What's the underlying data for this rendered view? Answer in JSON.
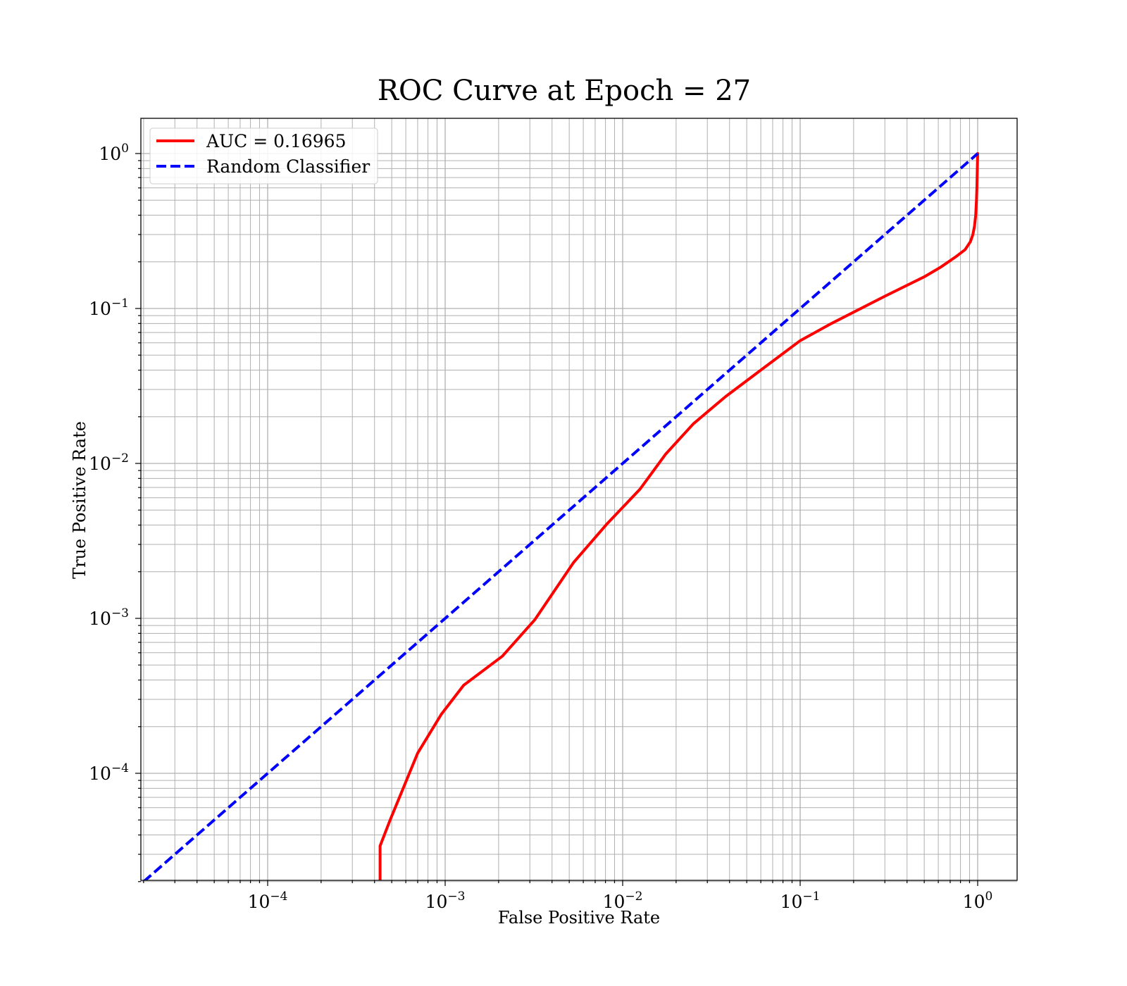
{
  "chart_data": {
    "type": "line",
    "title": "ROC Curve at Epoch = 27",
    "xlabel": "False Positive Rate",
    "ylabel": "True Positive Rate",
    "xscale": "log",
    "yscale": "log",
    "xlim": [
      2e-05,
      1.6
    ],
    "ylim": [
      2e-05,
      1.6
    ],
    "grid": "major and minor",
    "legend_position": "upper-left",
    "xticks": [
      {
        "base": "10",
        "exp": "−4"
      },
      {
        "base": "10",
        "exp": "−3"
      },
      {
        "base": "10",
        "exp": "−2"
      },
      {
        "base": "10",
        "exp": "−1"
      },
      {
        "base": "10",
        "exp": "0"
      }
    ],
    "yticks": [
      {
        "base": "10",
        "exp": "−4"
      },
      {
        "base": "10",
        "exp": "−3"
      },
      {
        "base": "10",
        "exp": "−2"
      },
      {
        "base": "10",
        "exp": "−1"
      },
      {
        "base": "10",
        "exp": "0"
      }
    ],
    "series": [
      {
        "name": "AUC = 0.16965",
        "color": "#ff0000",
        "style": "solid",
        "x": [
          0.00043,
          0.00043,
          0.00049,
          0.0007,
          0.00095,
          0.00127,
          0.0021,
          0.0032,
          0.0053,
          0.0082,
          0.0125,
          0.0175,
          0.025,
          0.038,
          0.06,
          0.1,
          0.15,
          0.3,
          0.5,
          0.62,
          0.75,
          0.85,
          0.91,
          0.94,
          0.96,
          0.975,
          0.985,
          0.99,
          0.995,
          1.0
        ],
        "y": [
          2e-05,
          3.4e-05,
          5e-05,
          0.000135,
          0.00024,
          0.00037,
          0.00057,
          0.00098,
          0.0023,
          0.0041,
          0.0068,
          0.0115,
          0.018,
          0.027,
          0.04,
          0.062,
          0.08,
          0.12,
          0.16,
          0.185,
          0.215,
          0.24,
          0.27,
          0.3,
          0.34,
          0.4,
          0.5,
          0.6,
          0.8,
          1.0
        ]
      },
      {
        "name": "Random Classifier",
        "color": "#0000ff",
        "style": "dashed",
        "x": [
          2e-05,
          1.0
        ],
        "y": [
          2e-05,
          1.0
        ]
      }
    ]
  }
}
